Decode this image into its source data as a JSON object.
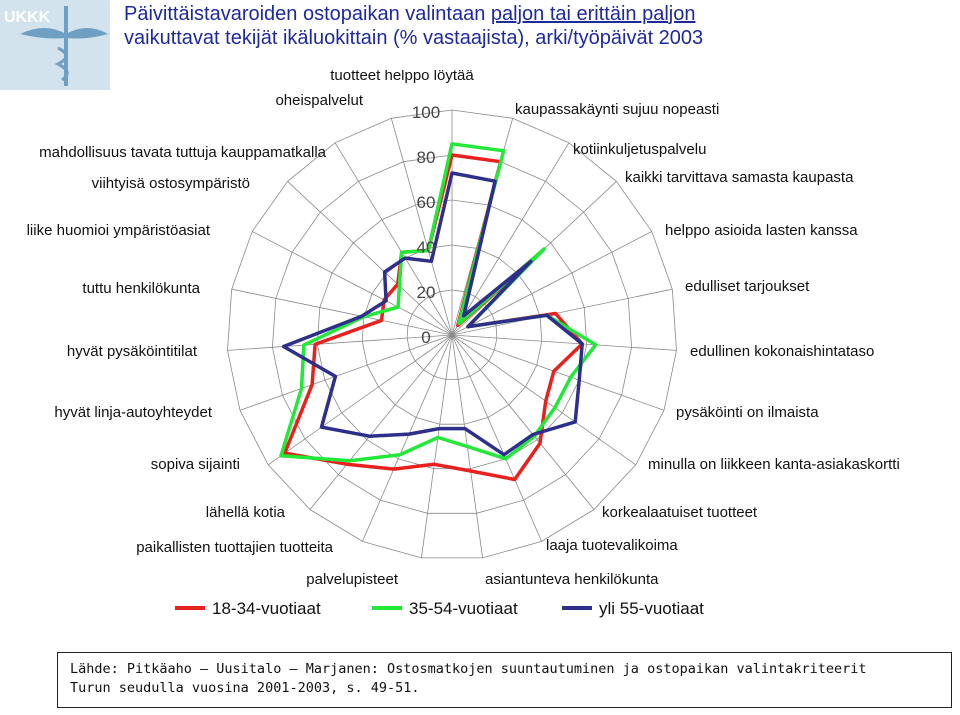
{
  "title": {
    "line1": "Päivittäistavaroiden ostopaikan valintaan ",
    "line1_underlined": "paljon tai erittäin paljon",
    "line2": "vaikuttavat tekijät ikäluokittain (% vastaajista), arki/työpäivät 2003"
  },
  "logo": {
    "icon": "caduceus-logo",
    "text": "UKKK"
  },
  "source": {
    "line1": "Lähde: Pitkäaho – Uusitalo – Marjanen: Ostosmatkojen suuntautuminen ja ostopaikan valintakriteerit",
    "line2": "Turun seudulla vuosina 2001-2003, s. 49-51."
  },
  "colors": {
    "title": "#1e2a9a",
    "grid": "#8a8a8a",
    "series": [
      "#e8201e",
      "#22e838",
      "#2d2f8a"
    ]
  },
  "chart_data": {
    "type": "radar",
    "categories": [
      "tuotteet helppo löytää",
      "kaupassakäynti sujuu nopeasti",
      "kotiinkuljetuspalvelu",
      "kaikki tarvittava samasta kaupasta",
      "helppo asioida lasten kanssa",
      "edulliset tarjoukset",
      "edullinen kokonaishintataso",
      "pysäköinti on ilmaista",
      "minulla on liikkeen kanta-asiakaskortti",
      "korkealaatuiset tuotteet",
      "laaja tuotevalikoima",
      "asiantunteva henkilökunta",
      "palvelupisteet",
      "paikallisten tuottajien tuotteita",
      "lähellä kotia",
      "sopiva sijainti",
      "hyvät linja-autoyhteydet",
      "hyvät pysäköintitilat",
      "tuttu henkilökunta",
      "liike huomioi ympäristöasiat",
      "viihtyisä ostosympäristö",
      "mahdollisuus tavata tuttuja kauppamatkalla",
      "oheispalvelut"
    ],
    "radial_ticks": [
      "0",
      "20",
      "40",
      "60",
      "80",
      "100"
    ],
    "r_range": [
      0,
      100
    ],
    "series": [
      {
        "name": "18-34-vuotiaat",
        "values": [
          80,
          80,
          5,
          51,
          8,
          47,
          58,
          48,
          51,
          62,
          70,
          61,
          58,
          65,
          74,
          91,
          66,
          61,
          32,
          34,
          33,
          43,
          39
        ]
      },
      {
        "name": "35-54-vuotiaat",
        "values": [
          85,
          85,
          6,
          56,
          8,
          43,
          64,
          56,
          56,
          58,
          60,
          50,
          46,
          58,
          72,
          93,
          71,
          66,
          40,
          27,
          32,
          43,
          39
        ]
      },
      {
        "name": "yli 55-vuotiaat",
        "values": [
          72,
          71,
          10,
          48,
          8,
          43,
          58,
          60,
          67,
          57,
          58,
          42,
          42,
          48,
          58,
          71,
          55,
          75,
          41,
          33,
          41,
          40,
          34
        ]
      }
    ]
  }
}
